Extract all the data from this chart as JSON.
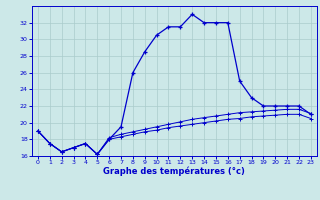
{
  "hours": [
    0,
    1,
    2,
    3,
    4,
    5,
    6,
    7,
    8,
    9,
    10,
    11,
    12,
    13,
    14,
    15,
    16,
    17,
    18,
    19,
    20,
    21,
    22,
    23
  ],
  "temp_main": [
    19.0,
    17.5,
    16.5,
    17.0,
    17.5,
    16.2,
    18.0,
    19.5,
    26.0,
    28.5,
    30.5,
    31.5,
    31.5,
    33.0,
    32.0,
    32.0,
    32.0,
    25.0,
    23.0,
    22.0,
    22.0,
    22.0,
    22.0,
    21.0
  ],
  "temp_line2": [
    19.0,
    17.5,
    16.5,
    17.0,
    17.5,
    16.2,
    18.2,
    18.6,
    18.9,
    19.2,
    19.5,
    19.8,
    20.1,
    20.4,
    20.6,
    20.8,
    21.0,
    21.2,
    21.3,
    21.4,
    21.5,
    21.6,
    21.6,
    21.1
  ],
  "temp_line3": [
    19.0,
    17.5,
    16.5,
    17.0,
    17.5,
    16.2,
    18.0,
    18.3,
    18.6,
    18.9,
    19.1,
    19.4,
    19.6,
    19.8,
    20.0,
    20.2,
    20.4,
    20.5,
    20.7,
    20.8,
    20.9,
    21.0,
    21.0,
    20.5
  ],
  "line_color": "#0000cc",
  "bg_color": "#cce8e8",
  "grid_color": "#aacccc",
  "xlabel": "Graphe des températures (°c)",
  "ylim": [
    16,
    34
  ],
  "xlim": [
    -0.5,
    23.5
  ],
  "yticks": [
    16,
    18,
    20,
    22,
    24,
    26,
    28,
    30,
    32
  ],
  "xticks": [
    0,
    1,
    2,
    3,
    4,
    5,
    6,
    7,
    8,
    9,
    10,
    11,
    12,
    13,
    14,
    15,
    16,
    17,
    18,
    19,
    20,
    21,
    22,
    23
  ]
}
